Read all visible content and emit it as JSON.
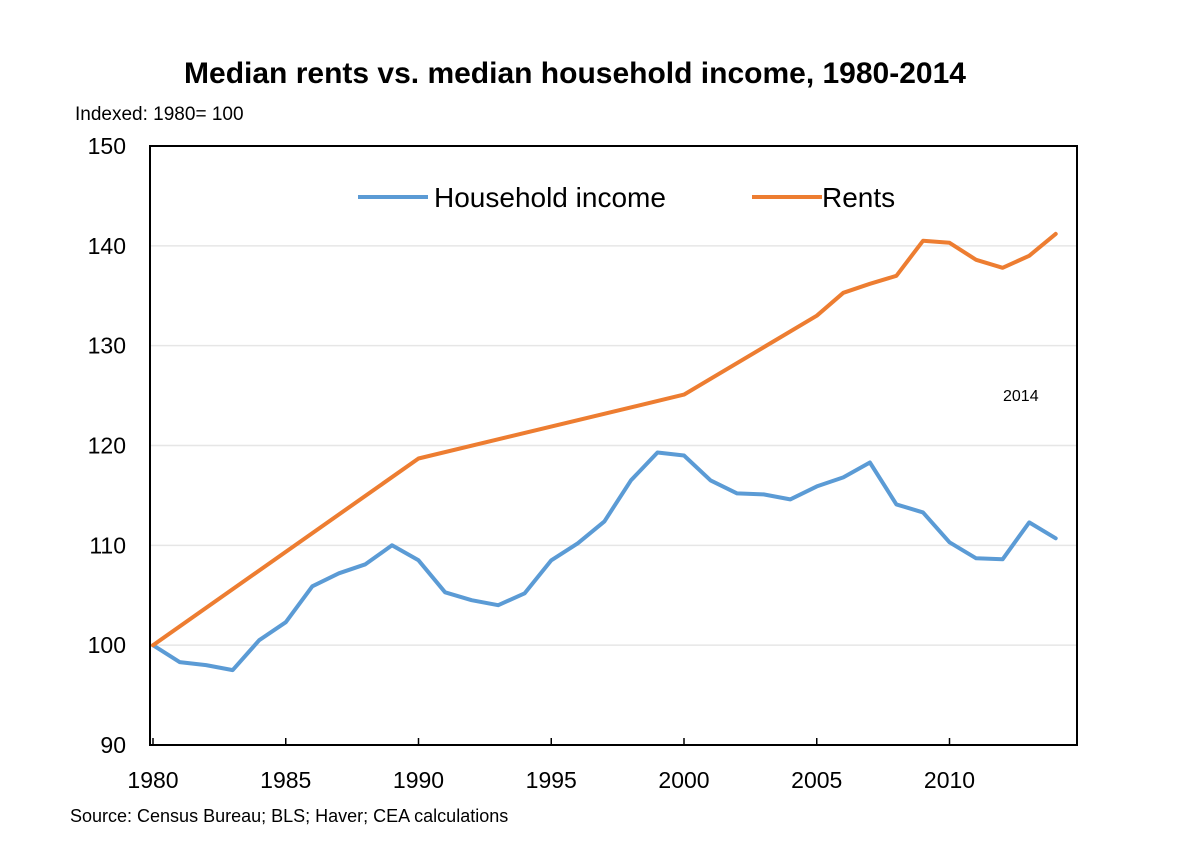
{
  "chart_data": {
    "type": "line",
    "title": "Median rents vs. median household income, 1980-2014",
    "subtitle": "Indexed: 1980= 100",
    "source": "Source: Census Bureau; BLS; Haver; CEA calculations",
    "xlabel": "",
    "ylabel": "",
    "xlim": [
      1980,
      2014.5
    ],
    "ylim": [
      90,
      150
    ],
    "x_ticks": [
      1980,
      1985,
      1990,
      1995,
      2000,
      2005,
      2010
    ],
    "y_ticks": [
      90,
      100,
      110,
      120,
      130,
      140,
      150
    ],
    "grid": "horizontal",
    "legend_position": "top-center",
    "annotation": "2014",
    "series": [
      {
        "name": "Household income",
        "color": "#5b9bd5",
        "x": [
          1980,
          1981,
          1982,
          1983,
          1984,
          1985,
          1986,
          1987,
          1988,
          1989,
          1990,
          1991,
          1992,
          1993,
          1994,
          1995,
          1996,
          1997,
          1998,
          1999,
          2000,
          2001,
          2002,
          2003,
          2004,
          2005,
          2006,
          2007,
          2008,
          2009,
          2010,
          2011,
          2012,
          2013,
          2014
        ],
        "values": [
          100,
          98.3,
          98.0,
          97.5,
          100.5,
          102.3,
          105.9,
          107.2,
          108.1,
          110.0,
          108.5,
          105.3,
          104.5,
          104.0,
          105.2,
          108.5,
          110.2,
          112.4,
          116.5,
          119.3,
          119.0,
          116.5,
          115.2,
          115.1,
          114.6,
          115.9,
          116.8,
          118.3,
          114.1,
          113.3,
          110.3,
          108.7,
          108.6,
          112.3,
          110.7
        ]
      },
      {
        "name": "Rents",
        "color": "#ed7d31",
        "x": [
          1980,
          1990,
          2000,
          2005,
          2006,
          2007,
          2008,
          2009,
          2010,
          2011,
          2012,
          2013,
          2014
        ],
        "values": [
          100,
          118.7,
          125.1,
          133.0,
          135.3,
          136.2,
          137.0,
          140.5,
          140.3,
          138.6,
          137.8,
          139.0,
          141.2
        ]
      }
    ]
  }
}
